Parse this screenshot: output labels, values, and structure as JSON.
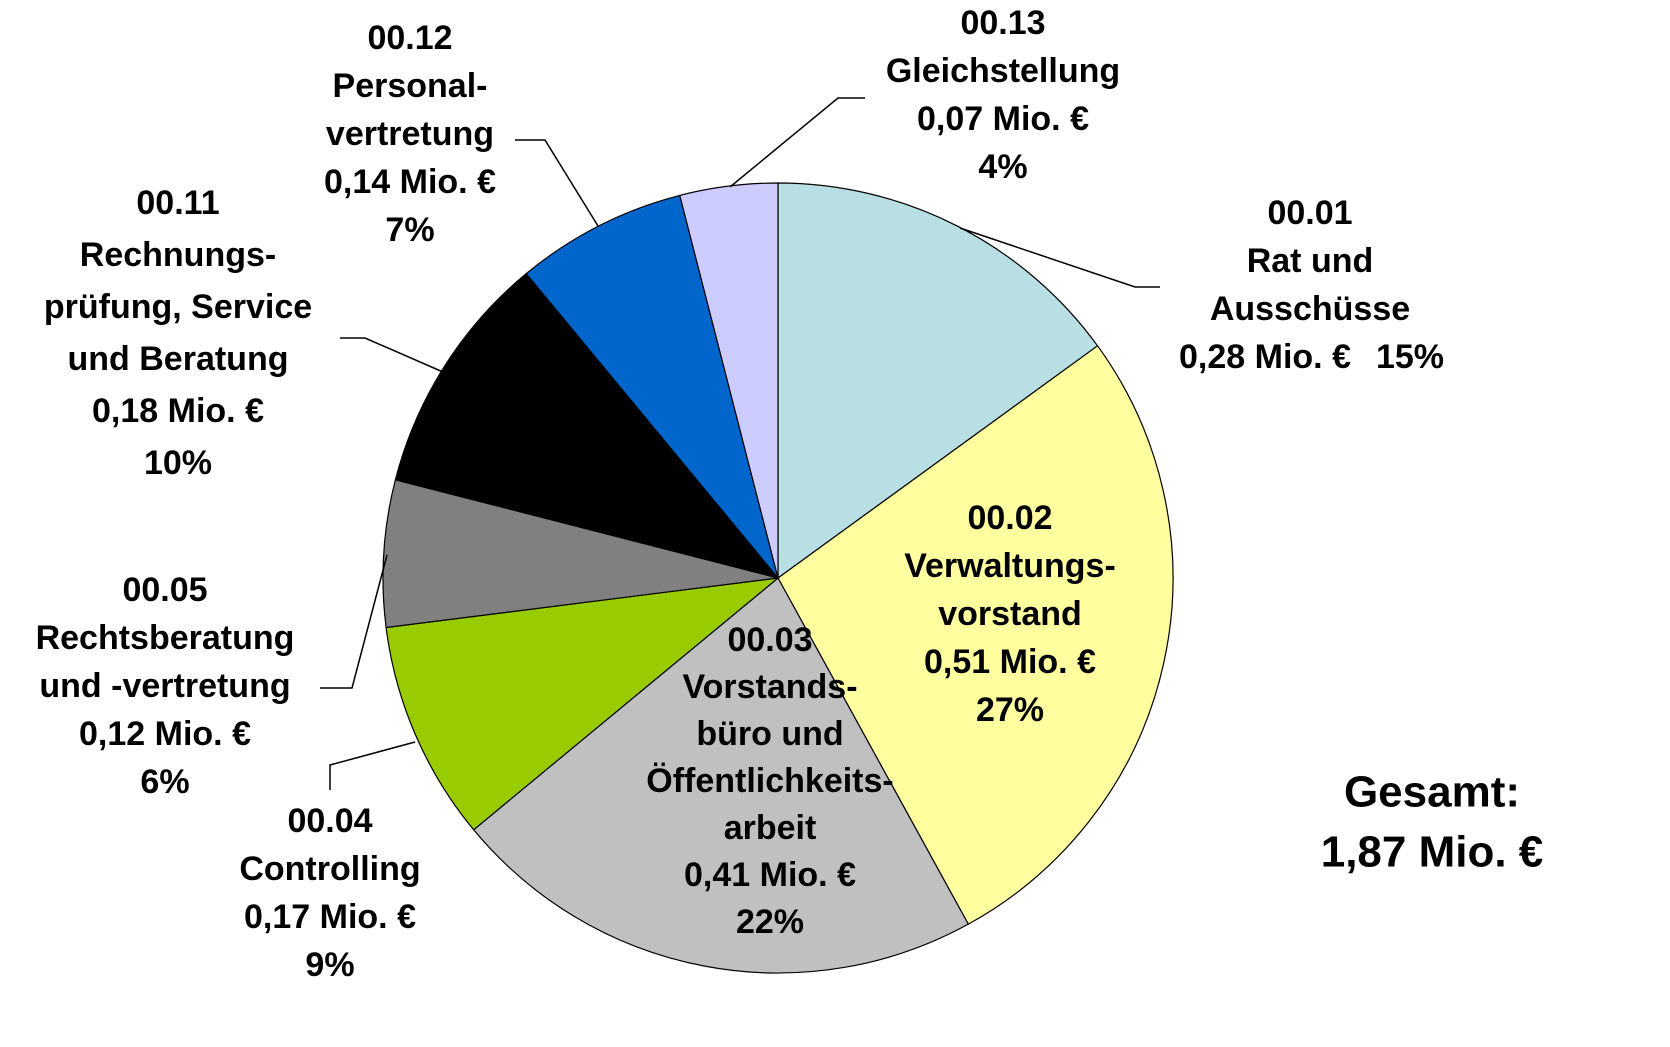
{
  "chart_data": {
    "type": "pie",
    "categories": [
      [
        "00.01",
        "Rat und",
        "Ausschüsse"
      ],
      [
        "00.02",
        "Verwaltungs-",
        "vorstand"
      ],
      [
        "00.03",
        "Vorstands-",
        "büro und",
        "Öffentlichkeits-",
        "arbeit"
      ],
      [
        "00.04",
        "Controlling"
      ],
      [
        "00.05",
        "Rechtsberatung",
        "und -vertretung"
      ],
      [
        "00.11",
        "Rechnungs-",
        "prüfung, Service",
        "und Beratung"
      ],
      [
        "00.12",
        "Personal-",
        "vertretung"
      ],
      [
        "00.13",
        "Gleichstellung"
      ]
    ],
    "amount_labels": [
      "0,28 Mio. €",
      "0,51 Mio. €",
      "0,41 Mio. €",
      "0,17 Mio. €",
      "0,12 Mio. €",
      "0,18 Mio. €",
      "0,14 Mio. €",
      "0,07 Mio. €"
    ],
    "values": [
      15,
      27,
      22,
      9,
      6,
      10,
      7,
      4
    ],
    "value_labels": [
      "15%",
      "27%",
      "22%",
      "9%",
      "6%",
      "10%",
      "7%",
      "4%"
    ],
    "colors": [
      "#b8e0e4",
      "#ffffa0",
      "#c0c0c0",
      "#99cc00",
      "#808080",
      "#000000",
      "#0066cc",
      "#ccccff"
    ],
    "total_label": [
      "Gesamt:",
      "1,87 Mio. €"
    ]
  }
}
